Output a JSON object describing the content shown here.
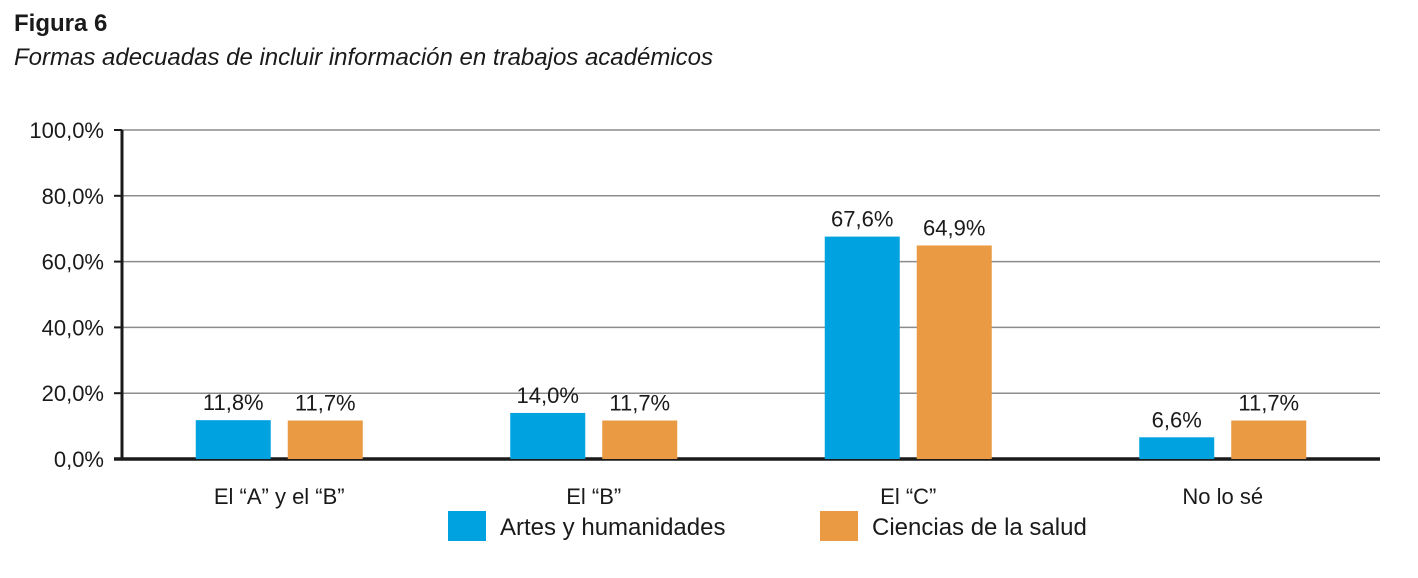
{
  "figure": {
    "label": "Figura 6",
    "title": "Formas adecuadas de incluir información en trabajos académicos"
  },
  "chart_data": {
    "type": "bar",
    "categories": [
      "El “A” y el “B”",
      "El “B”",
      "El “C”",
      "No lo sé"
    ],
    "series": [
      {
        "name": "Artes y humanidades",
        "color": "#00a3e0",
        "values": [
          11.8,
          14.0,
          67.6,
          6.6
        ],
        "labels": [
          "11,8%",
          "14,0%",
          "67,6%",
          "6,6%"
        ]
      },
      {
        "name": "Ciencias de la salud",
        "color": "#e99a42",
        "values": [
          11.7,
          11.7,
          64.9,
          11.7
        ],
        "labels": [
          "11,7%",
          "11,7%",
          "64,9%",
          "11,7%"
        ]
      }
    ],
    "yticks": [
      0,
      20,
      40,
      60,
      80,
      100
    ],
    "ytick_labels": [
      "0,0%",
      "20,0%",
      "40,0%",
      "60,0%",
      "80,0%",
      "100,0%"
    ],
    "ylim": [
      0,
      100
    ],
    "grid": true,
    "legend_position": "bottom-center",
    "title": "Formas adecuadas de incluir información en trabajos académicos",
    "xlabel": "",
    "ylabel": ""
  }
}
